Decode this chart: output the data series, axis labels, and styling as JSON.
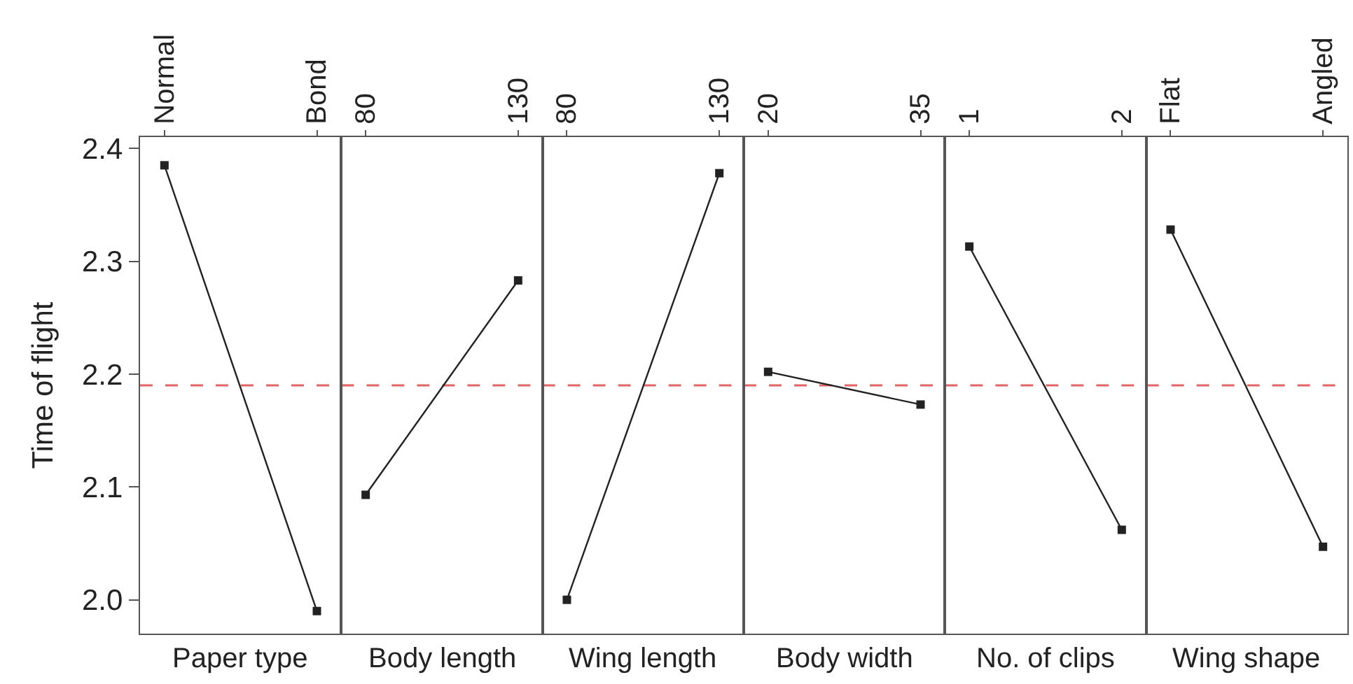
{
  "chart_data": [
    {
      "type": "line",
      "categories": [
        "Normal",
        "Bond"
      ],
      "values": [
        2.385,
        1.99
      ],
      "color": "#222222",
      "marker": "square",
      "xlabel": "Paper type",
      "ylabel": "Time of flight",
      "ylim": [
        1.97,
        2.41
      ],
      "yticks": [
        2.4,
        2.3,
        2.2,
        2.1,
        {
          "value": 2.0,
          "label": "2.0"
        }
      ],
      "ref_lines": [
        {
          "axis": "y",
          "value": 2.19,
          "color": "#e06666",
          "line_style": "dashed"
        }
      ]
    },
    {
      "type": "line",
      "categories": [
        "80",
        "130"
      ],
      "values": [
        2.093,
        2.283
      ],
      "color": "#222222",
      "marker": "square",
      "xlabel": "Body length",
      "ylim": [
        1.97,
        2.41
      ],
      "tick_labels": "x",
      "ref_lines": [
        {
          "axis": "y",
          "value": 2.19,
          "color": "#e06666",
          "line_style": "dashed"
        }
      ]
    },
    {
      "type": "line",
      "categories": [
        "80",
        "130"
      ],
      "values": [
        2.0,
        2.378
      ],
      "color": "#222222",
      "marker": "square",
      "xlabel": "Wing length",
      "ylim": [
        1.97,
        2.41
      ],
      "tick_labels": "x",
      "ref_lines": [
        {
          "axis": "y",
          "value": 2.19,
          "color": "#e06666",
          "line_style": "dashed"
        }
      ]
    },
    {
      "type": "line",
      "categories": [
        "20",
        "35"
      ],
      "values": [
        2.202,
        2.173
      ],
      "color": "#222222",
      "marker": "square",
      "xlabel": "Body width",
      "ylim": [
        1.97,
        2.41
      ],
      "tick_labels": "x",
      "ref_lines": [
        {
          "axis": "y",
          "value": 2.19,
          "color": "#e06666",
          "line_style": "dashed"
        }
      ]
    },
    {
      "type": "line",
      "categories": [
        "1",
        "2"
      ],
      "values": [
        2.313,
        2.062
      ],
      "color": "#222222",
      "marker": "square",
      "xlabel": "No. of clips",
      "ylim": [
        1.97,
        2.41
      ],
      "tick_labels": "x",
      "ref_lines": [
        {
          "axis": "y",
          "value": 2.19,
          "color": "#e06666",
          "line_style": "dashed"
        }
      ]
    },
    {
      "type": "line",
      "categories": [
        "Flat",
        "Angled"
      ],
      "values": [
        2.328,
        2.047
      ],
      "color": "#222222",
      "marker": "square",
      "xlabel": "Wing shape",
      "ylim": [
        1.97,
        2.41
      ],
      "tick_labels": "x",
      "ref_lines": [
        {
          "axis": "y",
          "value": 2.19,
          "color": "#e06666",
          "line_style": "dashed"
        }
      ]
    }
  ]
}
